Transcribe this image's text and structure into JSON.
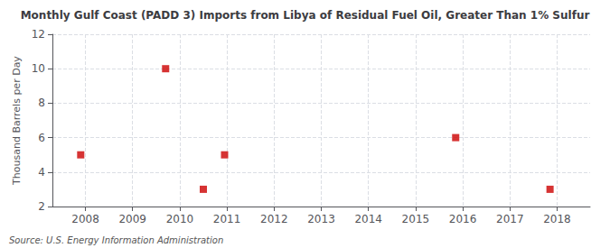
{
  "chart_data": {
    "type": "scatter",
    "title": "Monthly Gulf Coast (PADD 3) Imports from Libya of Residual Fuel Oil, Greater Than 1% Sulfur",
    "ylabel": "Thousand Barrels per Day",
    "source": "Source: U.S. Energy Information Administration",
    "x": [
      2007.9,
      2009.7,
      2010.5,
      2010.95,
      2015.85,
      2017.85
    ],
    "values": [
      5.0,
      10.0,
      3.0,
      5.0,
      6.0,
      3.0
    ],
    "color": "#cc0000",
    "marker": "square",
    "xlim": [
      2007.3,
      2018.7
    ],
    "xticks": [
      2008,
      2009,
      2010,
      2011,
      2012,
      2013,
      2014,
      2015,
      2016,
      2017,
      2018
    ],
    "ylim": [
      2,
      12
    ],
    "yticks": [
      2,
      4,
      6,
      8,
      10,
      12
    ],
    "grid": true
  }
}
